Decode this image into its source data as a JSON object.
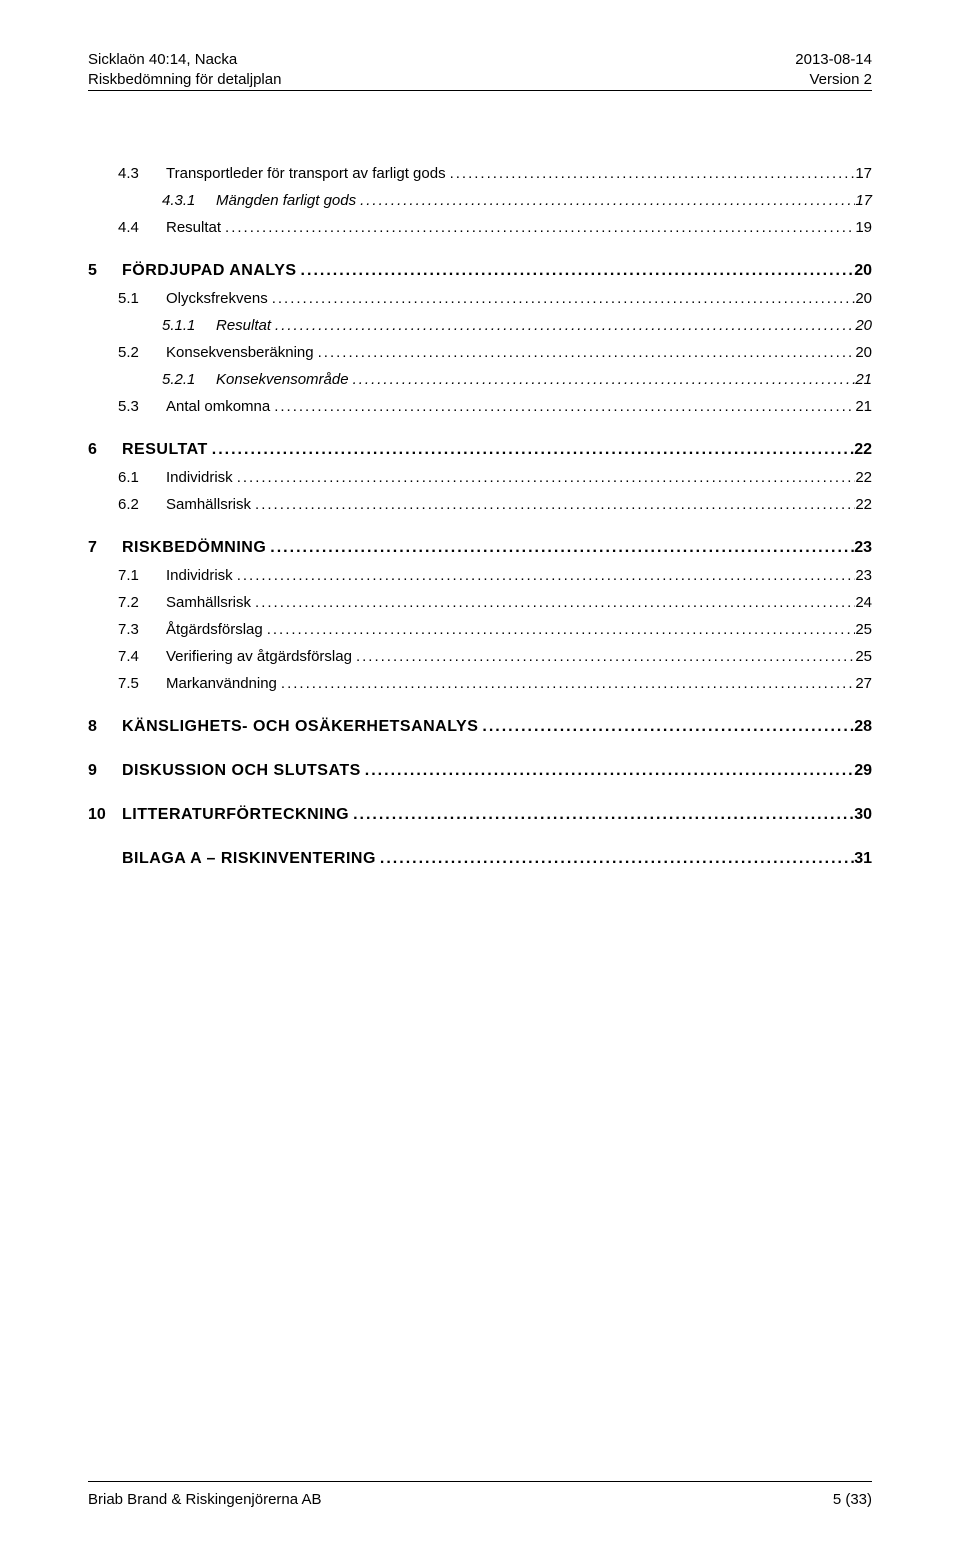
{
  "header": {
    "left1": "Sicklaön 40:14, Nacka",
    "left2": "Riskbedömning för detaljplan",
    "right1": "2013-08-14",
    "right2": "Version 2"
  },
  "footer": {
    "left": "Briab Brand & Riskingenjörerna AB",
    "right": "5 (33)"
  },
  "leaders": "................................................................................................................................................................................................................................",
  "toc": [
    {
      "lvl": 2,
      "num": "4.3",
      "txt": "Transportleder för transport av farligt gods",
      "pg": "17"
    },
    {
      "lvl": 3,
      "num": "4.3.1",
      "txt": "Mängden farligt gods",
      "pg": "17"
    },
    {
      "lvl": 2,
      "num": "4.4",
      "txt": "Resultat",
      "pg": "19"
    },
    {
      "lvl": 1,
      "num": "5",
      "txt": "FÖRDJUPAD ANALYS",
      "pg": "20"
    },
    {
      "lvl": 2,
      "num": "5.1",
      "txt": "Olycksfrekvens",
      "pg": "20"
    },
    {
      "lvl": 3,
      "num": "5.1.1",
      "txt": "Resultat",
      "pg": "20"
    },
    {
      "lvl": 2,
      "num": "5.2",
      "txt": "Konsekvensberäkning",
      "pg": "20"
    },
    {
      "lvl": 3,
      "num": "5.2.1",
      "txt": "Konsekvensområde",
      "pg": "21"
    },
    {
      "lvl": 2,
      "num": "5.3",
      "txt": "Antal omkomna",
      "pg": "21"
    },
    {
      "lvl": 1,
      "num": "6",
      "txt": "RESULTAT",
      "pg": "22"
    },
    {
      "lvl": 2,
      "num": "6.1",
      "txt": "Individrisk",
      "pg": "22"
    },
    {
      "lvl": 2,
      "num": "6.2",
      "txt": "Samhällsrisk",
      "pg": "22"
    },
    {
      "lvl": 1,
      "num": "7",
      "txt": "RISKBEDÖMNING",
      "pg": "23"
    },
    {
      "lvl": 2,
      "num": "7.1",
      "txt": "Individrisk",
      "pg": "23"
    },
    {
      "lvl": 2,
      "num": "7.2",
      "txt": "Samhällsrisk",
      "pg": "24"
    },
    {
      "lvl": 2,
      "num": "7.3",
      "txt": "Åtgärdsförslag",
      "pg": "25"
    },
    {
      "lvl": 2,
      "num": "7.4",
      "txt": "Verifiering av åtgärdsförslag",
      "pg": "25"
    },
    {
      "lvl": 2,
      "num": "7.5",
      "txt": "Markanvändning",
      "pg": "27"
    },
    {
      "lvl": 1,
      "num": "8",
      "txt": "KÄNSLIGHETS- OCH OSÄKERHETSANALYS",
      "pg": "28"
    },
    {
      "lvl": 1,
      "num": "9",
      "txt": "DISKUSSION OCH SLUTSATS",
      "pg": "29"
    },
    {
      "lvl": 1,
      "num": "10",
      "txt": " LITTERATURFÖRTECKNING",
      "pg": "30"
    },
    {
      "lvl": 1,
      "num": "",
      "txt": "BILAGA A – RISKINVENTERING",
      "pg": "31"
    }
  ]
}
